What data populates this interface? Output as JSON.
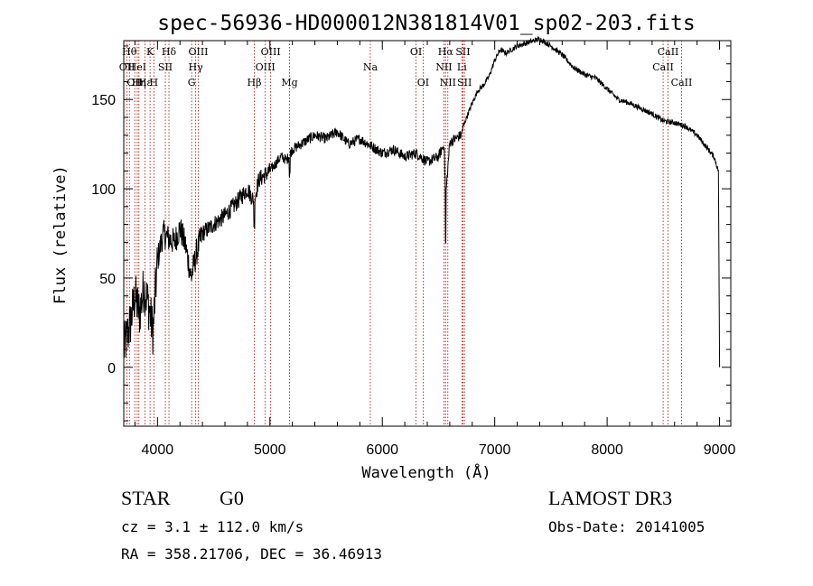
{
  "chart_data": {
    "type": "line",
    "title": "spec-56936-HD000012N381814V01_sp02-203.fits",
    "xlabel": "Wavelength (Å)",
    "ylabel": "Flux (relative)",
    "xlim": [
      3700,
      9100
    ],
    "ylim": [
      -33,
      183
    ],
    "xticks": [
      4000,
      5000,
      6000,
      7000,
      8000,
      9000
    ],
    "yticks": [
      0,
      50,
      100,
      150
    ],
    "grid": false,
    "series": [
      {
        "name": "spectrum",
        "x": [
          3700,
          3760,
          3800,
          3840,
          3880,
          3920,
          3960,
          4000,
          4050,
          4100,
          4150,
          4200,
          4250,
          4300,
          4350,
          4400,
          4500,
          4600,
          4700,
          4800,
          4860,
          4900,
          5000,
          5100,
          5150,
          5200,
          5300,
          5400,
          5500,
          5600,
          5700,
          5800,
          5900,
          6000,
          6100,
          6200,
          6300,
          6400,
          6500,
          6550,
          6563,
          6600,
          6650,
          6700,
          6720,
          6750,
          6800,
          6850,
          6900,
          6950,
          7000,
          7050,
          7100,
          7200,
          7300,
          7400,
          7500,
          7600,
          7700,
          7800,
          7900,
          8000,
          8100,
          8200,
          8300,
          8400,
          8500,
          8600,
          8700,
          8800,
          8900,
          8950,
          8990,
          9000
        ],
        "values": [
          10,
          25,
          40,
          30,
          45,
          35,
          20,
          60,
          75,
          72,
          70,
          78,
          68,
          50,
          65,
          75,
          80,
          85,
          92,
          100,
          93,
          105,
          110,
          118,
          116,
          122,
          126,
          130,
          128,
          132,
          125,
          128,
          124,
          120,
          122,
          118,
          120,
          115,
          118,
          125,
          95,
          126,
          128,
          130,
          135,
          140,
          148,
          155,
          158,
          163,
          172,
          178,
          176,
          180,
          182,
          184,
          180,
          175,
          168,
          164,
          162,
          156,
          150,
          148,
          145,
          142,
          138,
          137,
          135,
          130,
          122,
          118,
          110,
          0
        ]
      }
    ],
    "line_markers": [
      {
        "wl": 3729,
        "label": "OII",
        "row": 2
      },
      {
        "wl": 3750,
        "label": "Hθ",
        "row": 1
      },
      {
        "wl": 3798,
        "label": "OII",
        "row": 3
      },
      {
        "wl": 3820,
        "label": "HeI",
        "row": 2
      },
      {
        "wl": 3835,
        "label": "Hη",
        "row": 3
      },
      {
        "wl": 3889,
        "label": "Hε",
        "row": 3
      },
      {
        "wl": 3934,
        "label": "K",
        "row": 1
      },
      {
        "wl": 3968,
        "label": "H",
        "row": 3
      },
      {
        "wl": 4070,
        "label": "SII",
        "row": 2
      },
      {
        "wl": 4102,
        "label": "Hδ",
        "row": 1
      },
      {
        "wl": 4304,
        "label": "G",
        "row": 3
      },
      {
        "wl": 4340,
        "label": "Hγ",
        "row": 2
      },
      {
        "wl": 4363,
        "label": "OIII",
        "row": 1
      },
      {
        "wl": 4861,
        "label": "Hβ",
        "row": 3
      },
      {
        "wl": 4959,
        "label": "OIII",
        "row": 2
      },
      {
        "wl": 5007,
        "label": "OIII",
        "row": 1
      },
      {
        "wl": 5175,
        "label": "Mg",
        "row": 3
      },
      {
        "wl": 5893,
        "label": "Na",
        "row": 2
      },
      {
        "wl": 6300,
        "label": "OI",
        "row": 1
      },
      {
        "wl": 6363,
        "label": "OI",
        "row": 3
      },
      {
        "wl": 6548,
        "label": "NII",
        "row": 2
      },
      {
        "wl": 6563,
        "label": "Hα",
        "row": 1
      },
      {
        "wl": 6583,
        "label": "NII",
        "row": 3
      },
      {
        "wl": 6708,
        "label": "Li",
        "row": 2
      },
      {
        "wl": 6717,
        "label": "SII",
        "row": 1
      },
      {
        "wl": 6731,
        "label": "SII",
        "row": 3
      },
      {
        "wl": 8498,
        "label": "CaII",
        "row": 2
      },
      {
        "wl": 8542,
        "label": "CaII",
        "row": 1
      },
      {
        "wl": 8662,
        "label": "CaII",
        "row": 3
      }
    ]
  },
  "info": {
    "object_class": "STAR",
    "subclass": "G0",
    "survey": "LAMOST DR3",
    "redshift": "cz = 3.1 ± 112.0 km/s",
    "obs_date": "Obs-Date: 20141005",
    "coords": "RA = 358.21706, DEC =  36.46913"
  }
}
